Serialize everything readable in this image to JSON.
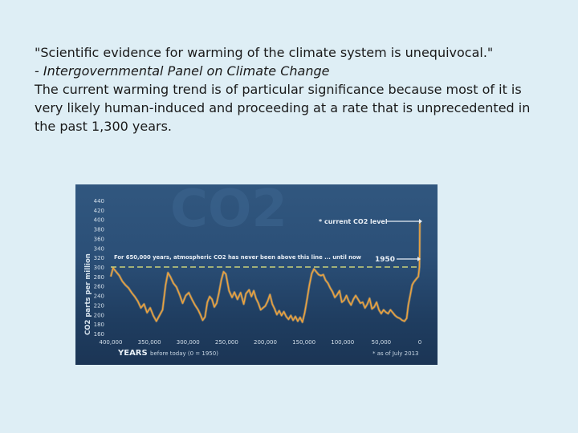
{
  "slide": {
    "quote": "\"Scientific evidence for warming of the climate system is unequivocal.\"",
    "attribution": "- Intergovernmental Panel on Climate Change",
    "body": "The current warming trend is of particular significance because most of it is very likely human-induced and proceeding at a rate that is unprecedented in the past 1,300 years."
  },
  "chart_data": {
    "type": "line",
    "watermark": "CO2",
    "ylabel": "CO2 parts per million",
    "xlabel": "YEARS",
    "xlabel_note": "before today (0 = 1950)",
    "footnote": "* as of July 2013",
    "ylim": [
      160,
      440
    ],
    "xlim": [
      400000,
      0
    ],
    "y_ticks": [
      "440",
      "420",
      "400",
      "380",
      "360",
      "340",
      "320",
      "300",
      "280",
      "260",
      "240",
      "220",
      "200",
      "180",
      "160"
    ],
    "x_ticks": [
      "400,000",
      "350,000",
      "300,000",
      "250,000",
      "200,000",
      "150,000",
      "100,000",
      "50,000",
      "0"
    ],
    "x_tick_values": [
      400000,
      350000,
      300000,
      250000,
      200000,
      150000,
      100000,
      50000,
      0
    ],
    "annotations": {
      "current_level": "* current CO2 level",
      "threshold_text": "For 650,000 years, atmospheric CO2 has never been above this line ... until now",
      "threshold_year": "1950"
    },
    "threshold_value": 300,
    "current_value": 398,
    "series": [
      {
        "color": "#f2a33a",
        "points": [
          [
            400000,
            280
          ],
          [
            397000,
            298
          ],
          [
            393000,
            290
          ],
          [
            389000,
            282
          ],
          [
            385000,
            270
          ],
          [
            381000,
            262
          ],
          [
            377000,
            256
          ],
          [
            373000,
            246
          ],
          [
            369000,
            238
          ],
          [
            365000,
            228
          ],
          [
            361000,
            214
          ],
          [
            357000,
            222
          ],
          [
            353000,
            204
          ],
          [
            349000,
            214
          ],
          [
            345000,
            198
          ],
          [
            341000,
            186
          ],
          [
            337000,
            198
          ],
          [
            333000,
            210
          ],
          [
            329000,
            262
          ],
          [
            326000,
            288
          ],
          [
            323000,
            280
          ],
          [
            319000,
            266
          ],
          [
            315000,
            258
          ],
          [
            311000,
            242
          ],
          [
            307000,
            224
          ],
          [
            303000,
            240
          ],
          [
            299000,
            246
          ],
          [
            295000,
            232
          ],
          [
            291000,
            220
          ],
          [
            287000,
            210
          ],
          [
            284000,
            200
          ],
          [
            281000,
            188
          ],
          [
            278000,
            195
          ],
          [
            275000,
            226
          ],
          [
            272000,
            238
          ],
          [
            269000,
            232
          ],
          [
            266000,
            216
          ],
          [
            263000,
            224
          ],
          [
            260000,
            246
          ],
          [
            257000,
            272
          ],
          [
            254000,
            290
          ],
          [
            251000,
            285
          ],
          [
            247000,
            250
          ],
          [
            243000,
            236
          ],
          [
            240000,
            247
          ],
          [
            236000,
            232
          ],
          [
            232000,
            246
          ],
          [
            228000,
            222
          ],
          [
            225000,
            244
          ],
          [
            221000,
            252
          ],
          [
            218000,
            238
          ],
          [
            215000,
            250
          ],
          [
            212000,
            234
          ],
          [
            209000,
            224
          ],
          [
            206000,
            210
          ],
          [
            203000,
            214
          ],
          [
            200000,
            218
          ],
          [
            197000,
            228
          ],
          [
            194000,
            242
          ],
          [
            191000,
            222
          ],
          [
            188000,
            212
          ],
          [
            185000,
            200
          ],
          [
            182000,
            208
          ],
          [
            179000,
            198
          ],
          [
            176000,
            206
          ],
          [
            173000,
            196
          ],
          [
            170000,
            190
          ],
          [
            167000,
            198
          ],
          [
            164000,
            188
          ],
          [
            161000,
            196
          ],
          [
            158000,
            186
          ],
          [
            155000,
            194
          ],
          [
            152000,
            184
          ],
          [
            149000,
            204
          ],
          [
            146000,
            232
          ],
          [
            143000,
            262
          ],
          [
            140000,
            286
          ],
          [
            137000,
            296
          ],
          [
            134000,
            290
          ],
          [
            131000,
            284
          ],
          [
            128000,
            282
          ],
          [
            125000,
            284
          ],
          [
            122000,
            272
          ],
          [
            119000,
            266
          ],
          [
            116000,
            256
          ],
          [
            113000,
            248
          ],
          [
            110000,
            236
          ],
          [
            107000,
            242
          ],
          [
            104000,
            250
          ],
          [
            101000,
            226
          ],
          [
            98000,
            230
          ],
          [
            95000,
            240
          ],
          [
            92000,
            228
          ],
          [
            89000,
            220
          ],
          [
            86000,
            232
          ],
          [
            83000,
            240
          ],
          [
            80000,
            232
          ],
          [
            77000,
            224
          ],
          [
            74000,
            226
          ],
          [
            71000,
            214
          ],
          [
            68000,
            222
          ],
          [
            65000,
            234
          ],
          [
            62000,
            212
          ],
          [
            59000,
            216
          ],
          [
            56000,
            226
          ],
          [
            53000,
            210
          ],
          [
            50000,
            202
          ],
          [
            47000,
            210
          ],
          [
            44000,
            205
          ],
          [
            41000,
            202
          ],
          [
            38000,
            210
          ],
          [
            35000,
            204
          ],
          [
            32000,
            198
          ],
          [
            29000,
            194
          ],
          [
            26000,
            192
          ],
          [
            23000,
            188
          ],
          [
            20000,
            186
          ],
          [
            17000,
            192
          ],
          [
            15000,
            220
          ],
          [
            12000,
            244
          ],
          [
            10000,
            262
          ],
          [
            8000,
            268
          ],
          [
            6000,
            272
          ],
          [
            4000,
            276
          ],
          [
            2000,
            280
          ],
          [
            500,
            300
          ],
          [
            300,
            320
          ],
          [
            200,
            350
          ],
          [
            100,
            378
          ],
          [
            0,
            398
          ]
        ]
      }
    ]
  }
}
